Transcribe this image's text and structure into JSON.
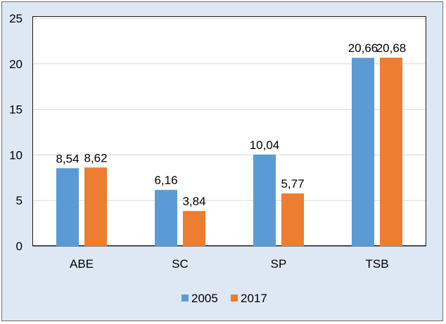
{
  "chart_data": {
    "type": "bar",
    "categories": [
      "ABE",
      "SC",
      "SP",
      "TSB"
    ],
    "series": [
      {
        "name": "2005",
        "values": [
          8.54,
          6.16,
          10.04,
          20.66
        ],
        "labels": [
          "8,54",
          "6,16",
          "10,04",
          "20,66"
        ],
        "color": "#5b9bd5"
      },
      {
        "name": "2017",
        "values": [
          8.62,
          3.84,
          5.77,
          20.68
        ],
        "labels": [
          "8,62",
          "3,84",
          "5,77",
          "20,68"
        ],
        "color": "#ed7d31"
      }
    ],
    "ylim": [
      0,
      25
    ],
    "yticks": [
      0,
      5,
      10,
      15,
      20,
      25
    ],
    "grid": true,
    "legend_position": "bottom",
    "background": "#dde8f4"
  }
}
